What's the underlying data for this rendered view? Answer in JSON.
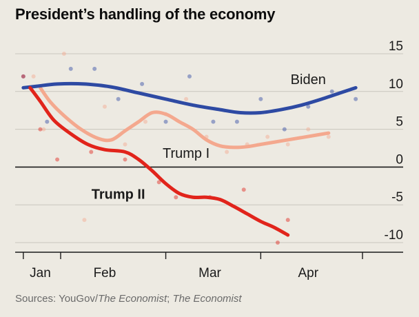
{
  "title": "President’s handling of the economy",
  "source": {
    "prefix": "Sources: YouGov/",
    "italic1": "The Economist",
    "sep": "; ",
    "italic2": "The Economist"
  },
  "colors": {
    "background": "#edeae2",
    "biden": "#2e4aa3",
    "trump1": "#f4a88e",
    "trump2": "#e1241b",
    "zero_line": "#1a1a1a",
    "grid": "#c9c6bd"
  },
  "chart_data": {
    "type": "line",
    "ylim": [
      -10,
      15
    ],
    "yticks": [
      15,
      10,
      5,
      0,
      -5,
      -10
    ],
    "ytick_labels": [
      "15",
      "10",
      "5",
      "0",
      "-5",
      "-10"
    ],
    "x_unit": "days since inauguration",
    "xlim": [
      -2,
      100
    ],
    "month_ticks": [
      0,
      11,
      42,
      70,
      100
    ],
    "month_labels": [
      {
        "label": "Jan",
        "x": 5
      },
      {
        "label": "Feb",
        "x": 24
      },
      {
        "label": "Mar",
        "x": 55
      },
      {
        "label": "Apr",
        "x": 84
      }
    ],
    "series": [
      {
        "name": "Biden",
        "smooth": [
          [
            0,
            10.5
          ],
          [
            4,
            10.7
          ],
          [
            10,
            11
          ],
          [
            18,
            11
          ],
          [
            26,
            10.6
          ],
          [
            34,
            9.8
          ],
          [
            42,
            9
          ],
          [
            50,
            8.2
          ],
          [
            58,
            7.6
          ],
          [
            64,
            7.2
          ],
          [
            70,
            7.2
          ],
          [
            76,
            7.6
          ],
          [
            82,
            8.2
          ],
          [
            88,
            9
          ],
          [
            94,
            9.9
          ],
          [
            98,
            10.5
          ]
        ],
        "points": [
          [
            0,
            12
          ],
          [
            7,
            6
          ],
          [
            14,
            13
          ],
          [
            21,
            13
          ],
          [
            28,
            9
          ],
          [
            35,
            11
          ],
          [
            42,
            6
          ],
          [
            49,
            12
          ],
          [
            56,
            6
          ],
          [
            63,
            6
          ],
          [
            70,
            9
          ],
          [
            77,
            5
          ],
          [
            84,
            8
          ],
          [
            91,
            10
          ],
          [
            98,
            9
          ]
        ]
      },
      {
        "name": "Trump I",
        "smooth": [
          [
            5,
            10.5
          ],
          [
            8,
            8.6
          ],
          [
            12,
            6.8
          ],
          [
            17,
            5
          ],
          [
            22,
            3.8
          ],
          [
            26,
            3.6
          ],
          [
            30,
            4.8
          ],
          [
            34,
            6
          ],
          [
            38,
            7.2
          ],
          [
            42,
            7
          ],
          [
            46,
            6
          ],
          [
            50,
            5
          ],
          [
            54,
            3.6
          ],
          [
            58,
            2.8
          ],
          [
            62,
            2.6
          ],
          [
            66,
            2.7
          ],
          [
            70,
            3
          ],
          [
            74,
            3.3
          ],
          [
            78,
            3.6
          ],
          [
            82,
            3.9
          ],
          [
            86,
            4.2
          ],
          [
            90,
            4.5
          ]
        ],
        "points": [
          [
            3,
            12
          ],
          [
            6,
            5
          ],
          [
            12,
            15
          ],
          [
            18,
            -7
          ],
          [
            24,
            8
          ],
          [
            30,
            3
          ],
          [
            36,
            6
          ],
          [
            42,
            7
          ],
          [
            48,
            9
          ],
          [
            54,
            4
          ],
          [
            60,
            2
          ],
          [
            66,
            3
          ],
          [
            72,
            4
          ],
          [
            78,
            3
          ],
          [
            84,
            5
          ],
          [
            90,
            4
          ]
        ]
      },
      {
        "name": "Trump II",
        "smooth": [
          [
            2,
            10.5
          ],
          [
            5,
            8.7
          ],
          [
            9,
            6.2
          ],
          [
            14,
            4.4
          ],
          [
            19,
            3
          ],
          [
            24,
            2.3
          ],
          [
            30,
            2
          ],
          [
            34,
            1
          ],
          [
            38,
            -0.5
          ],
          [
            42,
            -2.2
          ],
          [
            46,
            -3.5
          ],
          [
            50,
            -4
          ],
          [
            54,
            -4
          ],
          [
            58,
            -4.3
          ],
          [
            62,
            -5.2
          ],
          [
            66,
            -6.2
          ],
          [
            70,
            -7.2
          ],
          [
            74,
            -8
          ],
          [
            78,
            -9
          ]
        ],
        "points": [
          [
            0,
            12
          ],
          [
            5,
            5
          ],
          [
            10,
            1
          ],
          [
            20,
            2
          ],
          [
            30,
            1
          ],
          [
            40,
            -2
          ],
          [
            45,
            -4
          ],
          [
            55,
            -4
          ],
          [
            65,
            -3
          ],
          [
            75,
            -10
          ],
          [
            78,
            -7
          ]
        ]
      }
    ],
    "labels": [
      {
        "series": "Biden",
        "text": "Biden",
        "x": 84,
        "y": 11,
        "bold": false
      },
      {
        "series": "Trump I",
        "text": "Trump I",
        "x": 48,
        "y": 1.2,
        "bold": false
      },
      {
        "series": "Trump II",
        "text": "Trump II",
        "x": 28,
        "y": -4.2,
        "bold": true
      }
    ]
  }
}
